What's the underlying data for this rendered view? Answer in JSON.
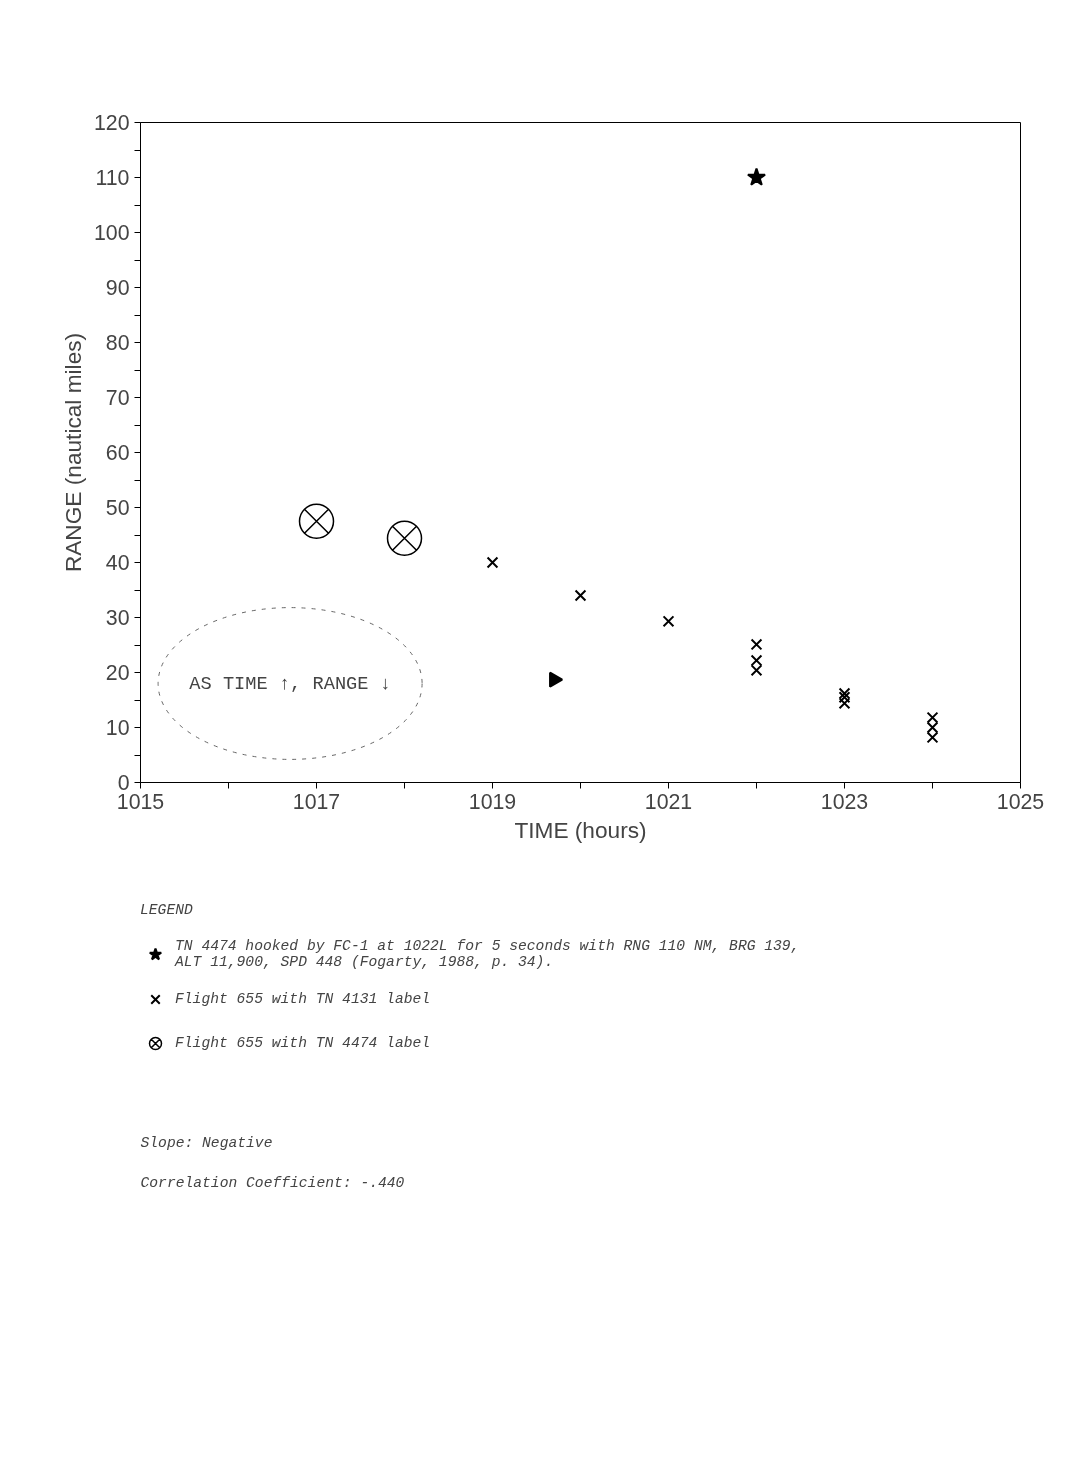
{
  "chart_data": {
    "type": "scatter",
    "xlabel": "TIME (hours)",
    "ylabel": "RANGE (nautical miles)",
    "legend_title": "LEGEND",
    "legend": "bottom",
    "grid": false,
    "xlim": [
      1015,
      1025
    ],
    "ylim": [
      0,
      120
    ],
    "xticks": [
      1015,
      {
        "value": 1016,
        "label": null
      },
      1017,
      {
        "value": 1018,
        "label": null
      },
      1019,
      {
        "value": 1020,
        "label": null
      },
      1021,
      {
        "value": 1022,
        "label": null
      },
      1023,
      {
        "value": 1024,
        "label": null
      },
      1025
    ],
    "yticks": [
      0,
      {
        "value": 5,
        "label": null
      },
      10,
      {
        "value": 15,
        "label": null
      },
      20,
      {
        "value": 25,
        "label": null
      },
      30,
      {
        "value": 35,
        "label": null
      },
      40,
      {
        "value": 45,
        "label": null
      },
      50,
      {
        "value": 55,
        "label": null
      },
      60,
      {
        "value": 65,
        "label": null
      },
      70,
      {
        "value": 75,
        "label": null
      },
      80,
      {
        "value": 85,
        "label": null
      },
      90,
      {
        "value": 95,
        "label": null
      },
      100,
      {
        "value": 105,
        "label": null
      },
      110,
      {
        "value": 115,
        "label": null
      },
      120
    ],
    "series": [
      {
        "name": "TN 4474 hooked by FC-1 at 1022L for 5 seconds with RNG 110 NM, BRG 139, ALT 11,900, SPD 448 (Fogarty, 1988, p. 34).",
        "color": "#000000",
        "marker": "star",
        "x": [
          1022
        ],
        "values": [
          110
        ]
      },
      {
        "name": "Flight 655 with TN 4131 label",
        "color": "#000000",
        "marker": "cross",
        "x": [
          1019,
          1020,
          1021,
          1022,
          1022,
          1022,
          1023,
          1023,
          1023,
          1024,
          1024,
          1024
        ],
        "values": [
          40,
          34,
          29.3,
          25.1,
          22.2,
          20.4,
          16.2,
          15.5,
          14.4,
          11.8,
          10,
          8.2
        ]
      },
      {
        "name": "Flight 655 with TN 4474 label",
        "color": "#000000",
        "marker": "circle_x",
        "x": [
          1017,
          1018
        ],
        "values": [
          47.5,
          44.4
        ]
      },
      {
        "color": "#000000",
        "marker": "triangle",
        "x": [
          1019.7
        ],
        "values": [
          18.7
        ]
      }
    ],
    "annotations": [
      "AS TIME ↑, RANGE ↓",
      "Slope:  Negative",
      "Correlation Coefficient:  -.440"
    ]
  }
}
